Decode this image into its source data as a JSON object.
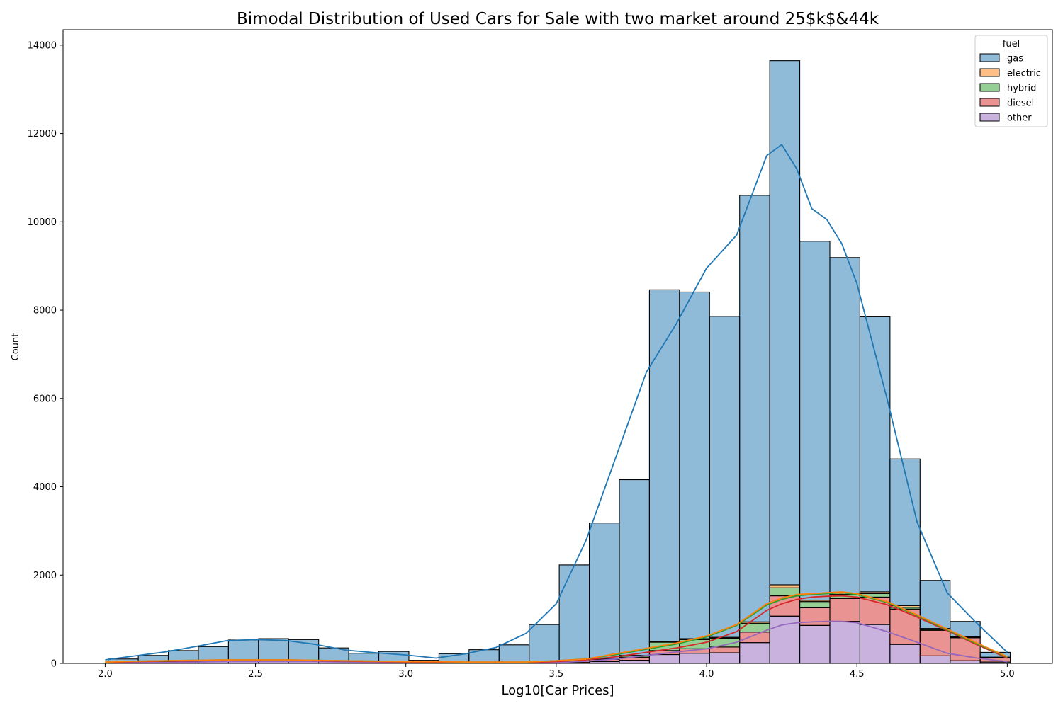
{
  "chart_data": {
    "type": "bar",
    "subtype": "stacked-histogram-with-kde",
    "title": "Bimodal Distribution of Used Cars for Sale with two market around 25$k$&44k",
    "xlabel": "Log10[Car Prices]",
    "ylabel": "Count",
    "xlim": [
      1.86,
      5.15
    ],
    "ylim": [
      0,
      14350
    ],
    "xticks": [
      2.0,
      2.5,
      3.0,
      3.5,
      4.0,
      4.5,
      5.0
    ],
    "xtick_labels": [
      "2.0",
      "2.5",
      "3.0",
      "3.5",
      "4.0",
      "4.5",
      "5.0"
    ],
    "yticks": [
      0,
      2000,
      4000,
      6000,
      8000,
      10000,
      12000,
      14000
    ],
    "ytick_labels": [
      "0",
      "2000",
      "4000",
      "6000",
      "8000",
      "10000",
      "12000",
      "14000"
    ],
    "grid": false,
    "legend": {
      "title": "fuel",
      "placement": "top-right"
    },
    "bin_edges": [
      2.01,
      2.11,
      2.21,
      2.31,
      2.41,
      2.51,
      2.61,
      2.71,
      2.81,
      2.91,
      3.01,
      3.11,
      3.21,
      3.31,
      3.41,
      3.51,
      3.61,
      3.71,
      3.81,
      3.91,
      4.01,
      4.11,
      4.21,
      4.31,
      4.41,
      4.51,
      4.61,
      4.71,
      4.81,
      4.91,
      5.01
    ],
    "series": [
      {
        "name": "gas",
        "color": "#1f77b4",
        "values": [
          60,
          140,
          250,
          330,
          450,
          480,
          470,
          300,
          190,
          230,
          30,
          200,
          290,
          400,
          850,
          2180,
          3080,
          3980,
          7960,
          7850,
          7270,
          9660,
          11870,
          8130,
          7600,
          6230,
          3320,
          1090,
          350,
          110
        ]
      },
      {
        "name": "electric",
        "color": "#ff7f0e",
        "values": [
          0,
          0,
          0,
          0,
          0,
          0,
          0,
          0,
          0,
          0,
          0,
          0,
          0,
          0,
          0,
          0,
          0,
          0,
          20,
          20,
          20,
          30,
          70,
          30,
          30,
          40,
          40,
          20,
          10,
          10
        ]
      },
      {
        "name": "hybrid",
        "color": "#2ca02c",
        "values": [
          0,
          0,
          0,
          0,
          0,
          0,
          0,
          0,
          0,
          0,
          0,
          0,
          0,
          0,
          0,
          0,
          10,
          40,
          190,
          210,
          200,
          200,
          180,
          140,
          90,
          80,
          40,
          20,
          10,
          0
        ]
      },
      {
        "name": "diesel",
        "color": "#d62728",
        "values": [
          10,
          10,
          10,
          10,
          20,
          20,
          20,
          10,
          10,
          10,
          10,
          10,
          10,
          10,
          20,
          30,
          50,
          70,
          90,
          100,
          130,
          240,
          460,
          400,
          520,
          620,
          800,
          580,
          520,
          100
        ]
      },
      {
        "name": "other",
        "color": "#9467bd",
        "values": [
          30,
          30,
          30,
          40,
          60,
          60,
          50,
          40,
          30,
          30,
          30,
          10,
          10,
          10,
          10,
          20,
          40,
          70,
          200,
          230,
          240,
          470,
          1070,
          860,
          950,
          880,
          430,
          170,
          60,
          30
        ]
      }
    ],
    "kde": {
      "x": [
        2.0,
        2.1,
        2.2,
        2.3,
        2.4,
        2.5,
        2.6,
        2.7,
        2.8,
        2.9,
        3.0,
        3.1,
        3.2,
        3.3,
        3.4,
        3.5,
        3.6,
        3.7,
        3.8,
        3.9,
        4.0,
        4.1,
        4.2,
        4.25,
        4.3,
        4.35,
        4.4,
        4.45,
        4.5,
        4.6,
        4.7,
        4.8,
        4.9,
        5.0
      ],
      "series": [
        {
          "name": "gas",
          "color": "#1f77b4",
          "values": [
            80,
            170,
            260,
            380,
            510,
            540,
            520,
            430,
            300,
            240,
            190,
            120,
            220,
            360,
            680,
            1350,
            2800,
            4700,
            6600,
            7700,
            8950,
            9700,
            11500,
            11750,
            11200,
            10300,
            10050,
            9500,
            8600,
            6000,
            3200,
            1600,
            900,
            250
          ]
        },
        {
          "name": "electric",
          "color": "#ff7f0e",
          "values": [
            30,
            50,
            60,
            70,
            80,
            80,
            80,
            70,
            60,
            50,
            40,
            40,
            30,
            30,
            30,
            60,
            100,
            220,
            340,
            460,
            620,
            880,
            1350,
            1480,
            1560,
            1580,
            1600,
            1620,
            1580,
            1400,
            1100,
            780,
            460,
            150
          ]
        },
        {
          "name": "hybrid",
          "color": "#2ca02c",
          "values": [
            30,
            50,
            60,
            70,
            80,
            80,
            80,
            70,
            60,
            50,
            40,
            40,
            30,
            30,
            30,
            60,
            100,
            200,
            320,
            440,
            600,
            860,
            1320,
            1450,
            1530,
            1560,
            1580,
            1600,
            1560,
            1380,
            1080,
            760,
            440,
            140
          ]
        },
        {
          "name": "diesel",
          "color": "#d62728",
          "values": [
            20,
            40,
            50,
            60,
            70,
            70,
            70,
            60,
            50,
            40,
            30,
            20,
            20,
            20,
            20,
            40,
            80,
            150,
            250,
            350,
            480,
            720,
            1200,
            1350,
            1450,
            1500,
            1520,
            1530,
            1500,
            1330,
            1050,
            740,
            420,
            120
          ]
        },
        {
          "name": "other",
          "color": "#9467bd",
          "values": [
            10,
            20,
            20,
            30,
            40,
            40,
            40,
            40,
            30,
            20,
            20,
            10,
            10,
            10,
            10,
            20,
            50,
            100,
            180,
            260,
            330,
            480,
            750,
            870,
            920,
            940,
            950,
            950,
            920,
            720,
            480,
            230,
            120,
            40
          ]
        }
      ]
    }
  }
}
